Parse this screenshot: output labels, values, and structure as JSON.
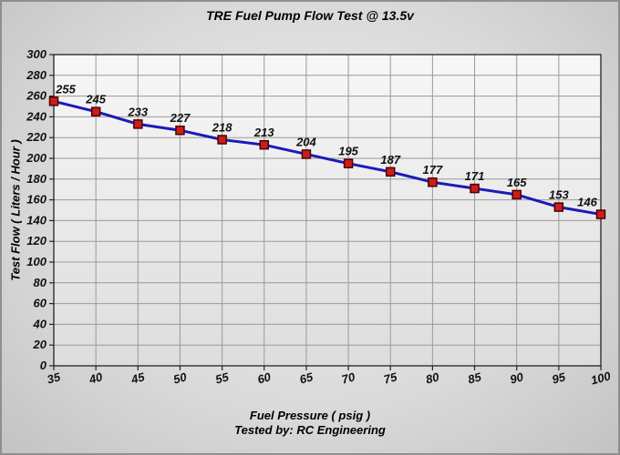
{
  "title": "TRE Fuel Pump Flow Test @ 13.5v",
  "chart_data": {
    "type": "line",
    "title": "TRE Fuel Pump Flow Test @ 13.5v",
    "xlabel": "Fuel Pressure ( psig )",
    "ylabel": "Test Flow ( Liters / Hour )",
    "footer": "Tested by: RC Engineering",
    "x": [
      35,
      40,
      45,
      50,
      55,
      60,
      65,
      70,
      75,
      80,
      85,
      90,
      95,
      100
    ],
    "values": [
      255,
      245,
      233,
      227,
      218,
      213,
      204,
      195,
      187,
      177,
      171,
      165,
      153,
      146
    ],
    "xlim": [
      35,
      100
    ],
    "ylim": [
      0,
      300
    ],
    "x_tick_step": 5,
    "y_tick_step": 20,
    "grid": true,
    "legend": "none",
    "line_color": "#1a1ab8",
    "marker_color": "#cc1d1d",
    "marker_edge_color": "#4d0000",
    "grid_color": "#9a9a9a",
    "axis_color": "#222222"
  }
}
